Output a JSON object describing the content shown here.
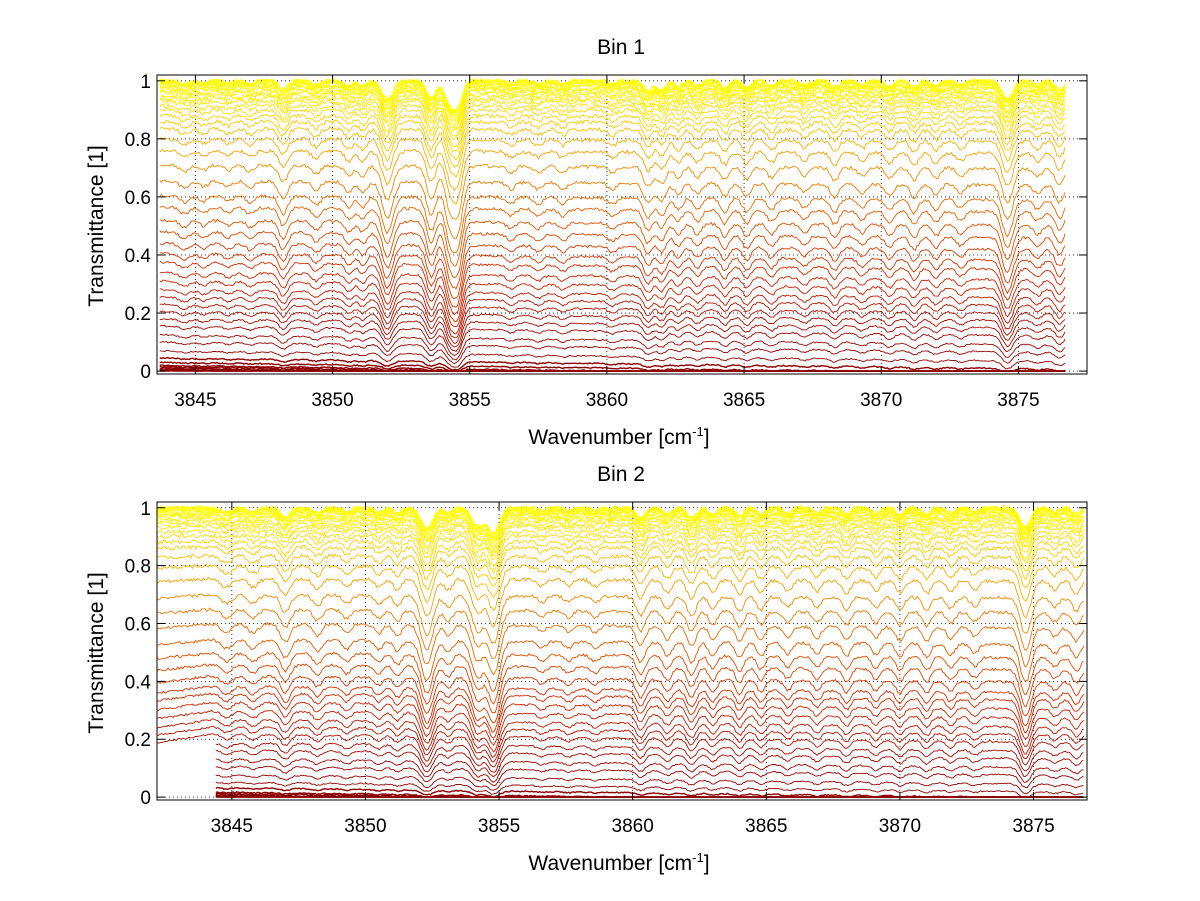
{
  "chart_data": [
    {
      "type": "line",
      "title": "Bin 1",
      "xlabel": "Wavenumber [cm",
      "xlabel_sup": "-1",
      "xlabel_end": "]",
      "ylabel": "Transmittance [1]",
      "xlim": [
        3843.6,
        3877.5
      ],
      "ylim": [
        -0.01,
        1.02
      ],
      "xticks": [
        3845,
        3850,
        3855,
        3860,
        3865,
        3870,
        3875
      ],
      "yticks": [
        0,
        0.2,
        0.4,
        0.6,
        0.8,
        1
      ],
      "ytick_labels": [
        "0",
        "0.2",
        "0.4",
        "0.6",
        "0.8",
        "1"
      ],
      "x_data_range": [
        3843.7,
        3876.7
      ],
      "grid": true,
      "series_count": 60,
      "offsets": [
        0.0,
        0.003,
        0.006,
        0.01,
        0.015,
        0.02,
        0.03,
        0.045,
        0.07,
        0.1,
        0.125,
        0.155,
        0.18,
        0.205,
        0.23,
        0.255,
        0.28,
        0.31,
        0.34,
        0.375,
        0.405,
        0.44,
        0.48,
        0.52,
        0.565,
        0.605,
        0.655,
        0.71,
        0.76,
        0.8,
        0.835,
        0.86,
        0.88,
        0.9,
        0.915,
        0.93,
        0.94,
        0.95,
        0.958,
        0.965,
        0.972,
        0.977,
        0.982,
        0.986,
        0.99,
        0.993,
        0.996,
        0.998,
        0.999,
        1.0
      ],
      "dips": [
        {
          "x": 3844.6,
          "depth": 0.03,
          "width": 0.18
        },
        {
          "x": 3845.3,
          "depth": 0.025,
          "width": 0.15
        },
        {
          "x": 3846.2,
          "depth": 0.025,
          "width": 0.15
        },
        {
          "x": 3847.0,
          "depth": 0.03,
          "width": 0.15
        },
        {
          "x": 3848.2,
          "depth": 0.08,
          "width": 0.16
        },
        {
          "x": 3849.4,
          "depth": 0.04,
          "width": 0.15
        },
        {
          "x": 3850.6,
          "depth": 0.05,
          "width": 0.15
        },
        {
          "x": 3851.1,
          "depth": 0.05,
          "width": 0.14
        },
        {
          "x": 3852.0,
          "depth": 0.16,
          "width": 0.2
        },
        {
          "x": 3853.6,
          "depth": 0.15,
          "width": 0.18
        },
        {
          "x": 3854.3,
          "depth": 0.2,
          "width": 0.2
        },
        {
          "x": 3854.6,
          "depth": 0.16,
          "width": 0.16
        },
        {
          "x": 3856.5,
          "depth": 0.03,
          "width": 0.15
        },
        {
          "x": 3857.5,
          "depth": 0.03,
          "width": 0.15
        },
        {
          "x": 3858.4,
          "depth": 0.03,
          "width": 0.15
        },
        {
          "x": 3860.2,
          "depth": 0.03,
          "width": 0.15
        },
        {
          "x": 3861.5,
          "depth": 0.09,
          "width": 0.17
        },
        {
          "x": 3862.0,
          "depth": 0.08,
          "width": 0.16
        },
        {
          "x": 3862.6,
          "depth": 0.05,
          "width": 0.15
        },
        {
          "x": 3863.3,
          "depth": 0.05,
          "width": 0.15
        },
        {
          "x": 3864.3,
          "depth": 0.06,
          "width": 0.15
        },
        {
          "x": 3865.1,
          "depth": 0.06,
          "width": 0.15
        },
        {
          "x": 3866.0,
          "depth": 0.05,
          "width": 0.15
        },
        {
          "x": 3867.2,
          "depth": 0.04,
          "width": 0.15
        },
        {
          "x": 3868.3,
          "depth": 0.06,
          "width": 0.15
        },
        {
          "x": 3869.3,
          "depth": 0.04,
          "width": 0.15
        },
        {
          "x": 3870.3,
          "depth": 0.05,
          "width": 0.15
        },
        {
          "x": 3871.2,
          "depth": 0.06,
          "width": 0.15
        },
        {
          "x": 3872.0,
          "depth": 0.05,
          "width": 0.15
        },
        {
          "x": 3872.9,
          "depth": 0.04,
          "width": 0.15
        },
        {
          "x": 3874.6,
          "depth": 0.16,
          "width": 0.2
        },
        {
          "x": 3875.7,
          "depth": 0.04,
          "width": 0.15
        },
        {
          "x": 3876.5,
          "depth": 0.08,
          "width": 0.16
        }
      ],
      "colors": [
        "#8b0000",
        "#cc2200",
        "#e05000",
        "#f07800",
        "#f8a800",
        "#ffd800",
        "#ffff00"
      ]
    },
    {
      "type": "line",
      "title": "Bin 2",
      "xlabel": "Wavenumber [cm",
      "xlabel_sup": "-1",
      "xlabel_end": "]",
      "ylabel": "Transmittance [1]",
      "xlim": [
        3842.2,
        3877.0
      ],
      "ylim": [
        -0.01,
        1.02
      ],
      "xticks": [
        3845,
        3850,
        3855,
        3860,
        3865,
        3870,
        3875
      ],
      "yticks": [
        0,
        0.2,
        0.4,
        0.6,
        0.8,
        1
      ],
      "ytick_labels": [
        "0",
        "0.2",
        "0.4",
        "0.6",
        "0.8",
        "1"
      ],
      "x_data_range": [
        3842.2,
        3876.9
      ],
      "low_start_x": 3844.4,
      "low_threshold": 0.2,
      "grid": true,
      "series_count": 60,
      "offsets": [
        0.0,
        0.003,
        0.006,
        0.01,
        0.015,
        0.02,
        0.035,
        0.055,
        0.08,
        0.11,
        0.135,
        0.165,
        0.19,
        0.22,
        0.245,
        0.27,
        0.3,
        0.33,
        0.36,
        0.385,
        0.42,
        0.46,
        0.5,
        0.545,
        0.6,
        0.65,
        0.7,
        0.755,
        0.8,
        0.835,
        0.865,
        0.885,
        0.905,
        0.92,
        0.935,
        0.945,
        0.955,
        0.963,
        0.97,
        0.976,
        0.981,
        0.985,
        0.989,
        0.992,
        0.995,
        0.997,
        0.999,
        1.0
      ],
      "dips": [
        {
          "x": 3844.8,
          "depth": 0.04,
          "width": 0.2
        },
        {
          "x": 3845.8,
          "depth": 0.04,
          "width": 0.18
        },
        {
          "x": 3847.0,
          "depth": 0.08,
          "width": 0.18
        },
        {
          "x": 3848.2,
          "depth": 0.05,
          "width": 0.16
        },
        {
          "x": 3849.3,
          "depth": 0.04,
          "width": 0.15
        },
        {
          "x": 3850.5,
          "depth": 0.04,
          "width": 0.15
        },
        {
          "x": 3851.2,
          "depth": 0.05,
          "width": 0.15
        },
        {
          "x": 3852.3,
          "depth": 0.18,
          "width": 0.22
        },
        {
          "x": 3853.1,
          "depth": 0.05,
          "width": 0.15
        },
        {
          "x": 3854.2,
          "depth": 0.16,
          "width": 0.22
        },
        {
          "x": 3854.8,
          "depth": 0.22,
          "width": 0.22
        },
        {
          "x": 3856.6,
          "depth": 0.03,
          "width": 0.15
        },
        {
          "x": 3857.6,
          "depth": 0.03,
          "width": 0.15
        },
        {
          "x": 3858.6,
          "depth": 0.03,
          "width": 0.15
        },
        {
          "x": 3860.3,
          "depth": 0.09,
          "width": 0.17
        },
        {
          "x": 3861.3,
          "depth": 0.06,
          "width": 0.16
        },
        {
          "x": 3862.2,
          "depth": 0.09,
          "width": 0.17
        },
        {
          "x": 3863.0,
          "depth": 0.06,
          "width": 0.15
        },
        {
          "x": 3864.0,
          "depth": 0.07,
          "width": 0.15
        },
        {
          "x": 3864.8,
          "depth": 0.06,
          "width": 0.15
        },
        {
          "x": 3865.8,
          "depth": 0.05,
          "width": 0.15
        },
        {
          "x": 3866.9,
          "depth": 0.05,
          "width": 0.15
        },
        {
          "x": 3868.0,
          "depth": 0.06,
          "width": 0.15
        },
        {
          "x": 3869.1,
          "depth": 0.05,
          "width": 0.15
        },
        {
          "x": 3870.0,
          "depth": 0.06,
          "width": 0.15
        },
        {
          "x": 3871.0,
          "depth": 0.06,
          "width": 0.15
        },
        {
          "x": 3871.9,
          "depth": 0.05,
          "width": 0.15
        },
        {
          "x": 3872.8,
          "depth": 0.04,
          "width": 0.15
        },
        {
          "x": 3874.7,
          "depth": 0.17,
          "width": 0.2
        },
        {
          "x": 3875.8,
          "depth": 0.04,
          "width": 0.15
        },
        {
          "x": 3876.6,
          "depth": 0.06,
          "width": 0.15
        }
      ],
      "colors": [
        "#8b0000",
        "#cc2200",
        "#e05000",
        "#f07800",
        "#f8a800",
        "#ffd800",
        "#ffff00"
      ]
    }
  ]
}
